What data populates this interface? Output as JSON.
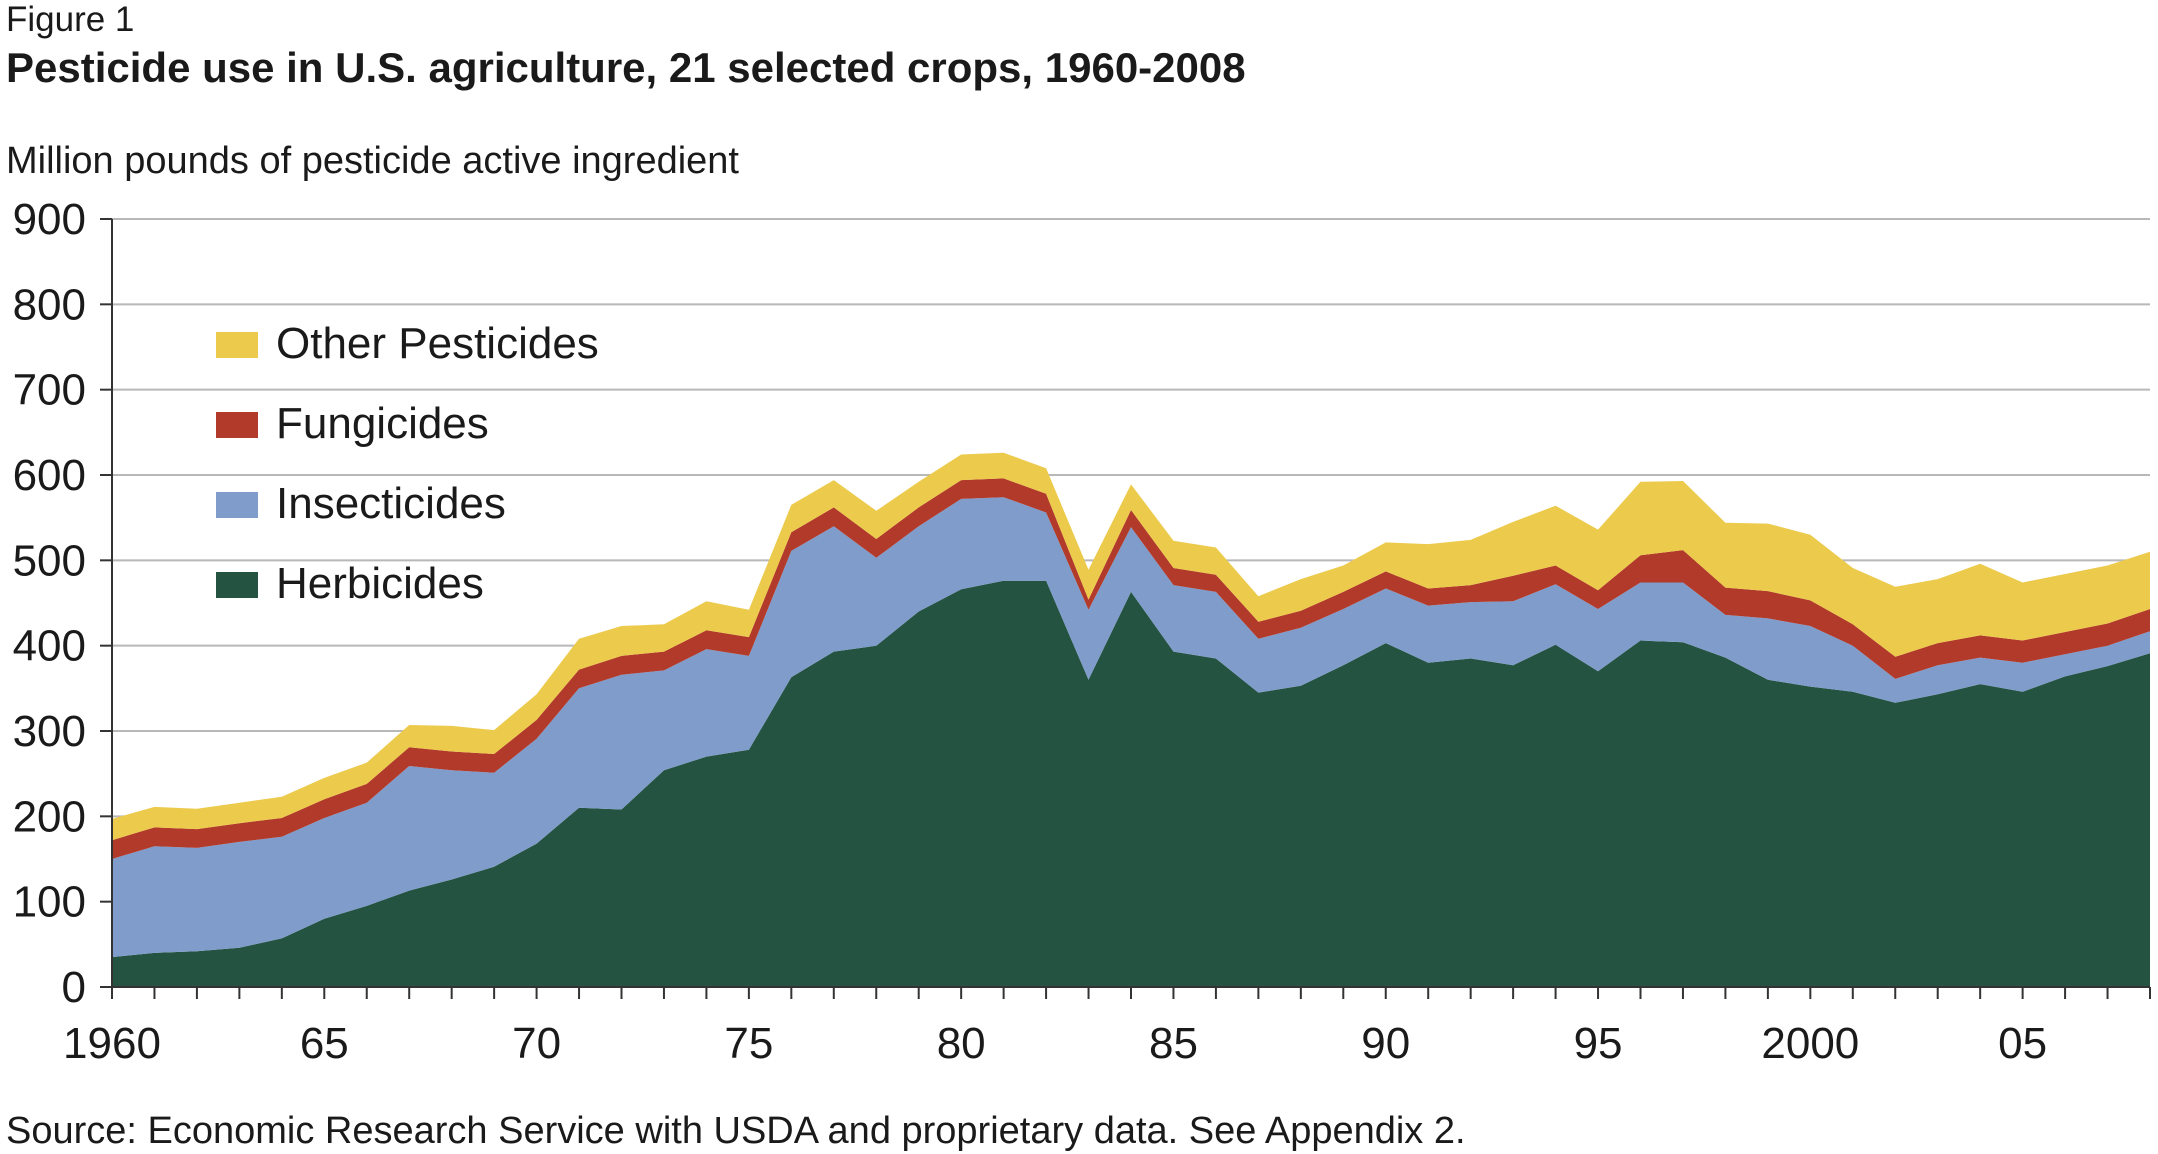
{
  "figure_label": "Figure 1",
  "title": "Pesticide use in U.S. agriculture, 21 selected crops, 1960-2008",
  "source": "Source: Economic Research Service with USDA and proprietary data. See Appendix 2.",
  "chart_data": {
    "type": "area",
    "stacked": true,
    "ylabel": "Million pounds of pesticide active ingredient",
    "xlabel": "",
    "ylim": [
      0,
      900
    ],
    "xlim": [
      1960,
      2008
    ],
    "yticks": [
      "0",
      "100",
      "200",
      "300",
      "400",
      "500",
      "600",
      "700",
      "800",
      "900"
    ],
    "xticks": [
      {
        "year": 1960,
        "label": "1960"
      },
      {
        "year": 1965,
        "label": "65"
      },
      {
        "year": 1970,
        "label": "70"
      },
      {
        "year": 1975,
        "label": "75"
      },
      {
        "year": 1980,
        "label": "80"
      },
      {
        "year": 1985,
        "label": "85"
      },
      {
        "year": 1990,
        "label": "90"
      },
      {
        "year": 1995,
        "label": "95"
      },
      {
        "year": 2000,
        "label": "2000"
      },
      {
        "year": 2005,
        "label": "05"
      }
    ],
    "grid": "horizontal",
    "legend_position": "top-left",
    "x": [
      1960,
      1961,
      1962,
      1963,
      1964,
      1965,
      1966,
      1967,
      1968,
      1969,
      1970,
      1971,
      1972,
      1973,
      1974,
      1975,
      1976,
      1977,
      1978,
      1979,
      1980,
      1981,
      1982,
      1983,
      1984,
      1985,
      1986,
      1987,
      1988,
      1989,
      1990,
      1991,
      1992,
      1993,
      1994,
      1995,
      1996,
      1997,
      1998,
      1999,
      2000,
      2001,
      2002,
      2003,
      2004,
      2005,
      2006,
      2007,
      2008
    ],
    "series": [
      {
        "name": "Herbicides",
        "color": "#245341",
        "values": [
          35,
          40,
          42,
          46,
          57,
          80,
          95,
          113,
          126,
          141,
          168,
          210,
          208,
          254,
          270,
          278,
          363,
          393,
          400,
          440,
          466,
          476,
          476,
          360,
          463,
          393,
          385,
          345,
          353,
          377,
          403,
          380,
          385,
          377,
          401,
          370,
          406,
          404,
          386,
          360,
          352,
          346,
          333,
          343,
          355,
          346,
          364,
          376,
          391
        ]
      },
      {
        "name": "Insecticides",
        "color": "#7f9ccb",
        "values": [
          115,
          125,
          121,
          124,
          119,
          118,
          121,
          146,
          128,
          110,
          123,
          140,
          158,
          117,
          126,
          110,
          148,
          147,
          103,
          100,
          106,
          98,
          80,
          82,
          76,
          78,
          78,
          63,
          68,
          66,
          64,
          67,
          66,
          75,
          71,
          73,
          68,
          70,
          50,
          72,
          71,
          54,
          28,
          34,
          31,
          34,
          26,
          24,
          26
        ]
      },
      {
        "name": "Fungicides",
        "color": "#b23a2a",
        "values": [
          22,
          22,
          22,
          22,
          22,
          22,
          22,
          22,
          22,
          22,
          22,
          22,
          22,
          22,
          22,
          22,
          22,
          22,
          22,
          22,
          22,
          22,
          22,
          12,
          20,
          20,
          20,
          20,
          20,
          20,
          20,
          20,
          20,
          30,
          22,
          22,
          32,
          38,
          32,
          32,
          30,
          25,
          26,
          26,
          26,
          26,
          26,
          26,
          26
        ]
      },
      {
        "name": "Other Pesticides",
        "color": "#ecca4c",
        "values": [
          25,
          24,
          24,
          24,
          25,
          25,
          25,
          26,
          30,
          28,
          30,
          36,
          35,
          32,
          34,
          32,
          32,
          32,
          33,
          30,
          30,
          30,
          30,
          35,
          30,
          32,
          32,
          30,
          37,
          31,
          34,
          52,
          53,
          63,
          70,
          71,
          86,
          81,
          76,
          79,
          77,
          66,
          82,
          75,
          84,
          68,
          68,
          68,
          67
        ]
      }
    ]
  }
}
